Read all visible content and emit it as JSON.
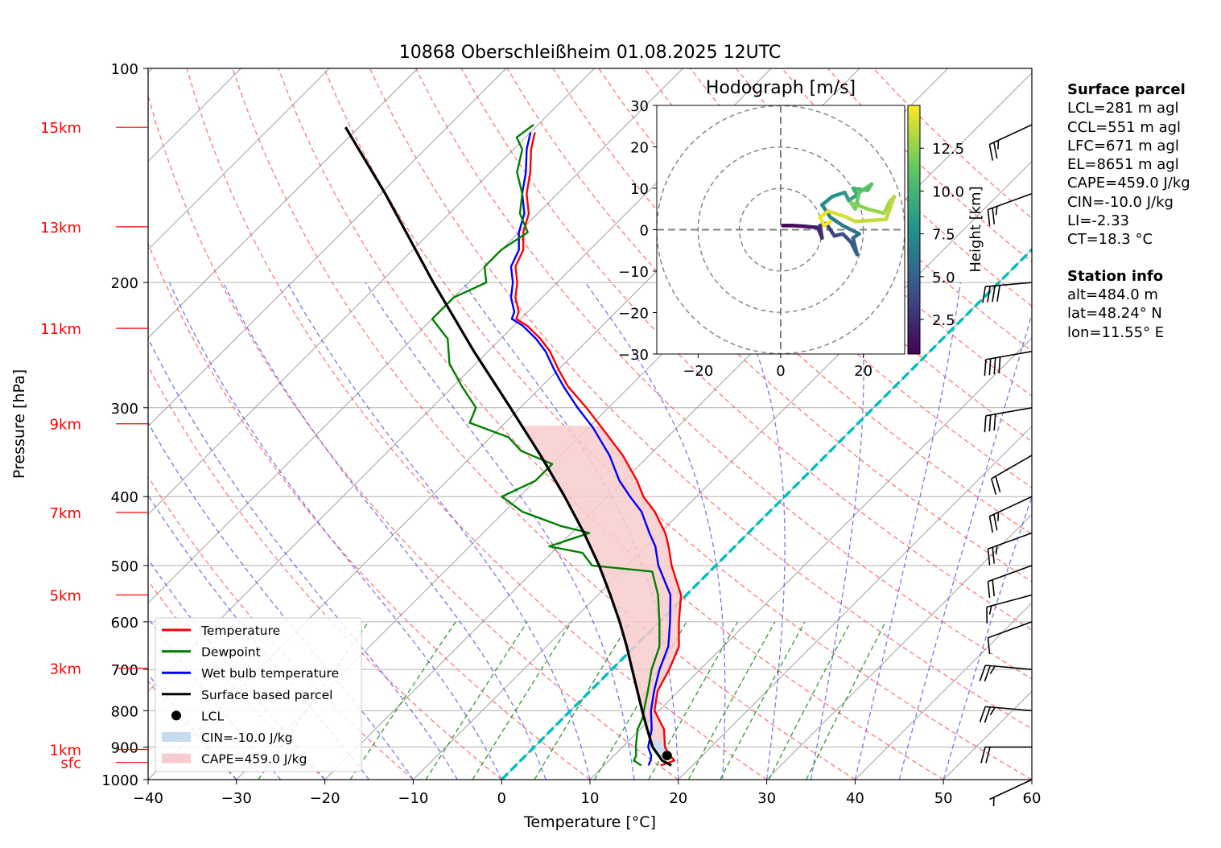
{
  "chart_data": {
    "type": "skew-t log-p diagram",
    "title": "10868 Oberschleißheim 01.08.2025 12UTC",
    "xlabel": "Temperature [°C]",
    "ylabel": "Pressure [hPa]",
    "xlim": [
      -40,
      60
    ],
    "ylim_hPa": [
      1000,
      100
    ],
    "x_ticks": [
      "−40",
      "−30",
      "−20",
      "−10",
      "0",
      "10",
      "20",
      "30",
      "40",
      "50",
      "60"
    ],
    "y_ticks": [
      "100",
      "200",
      "300",
      "400",
      "500",
      "600",
      "700",
      "800",
      "900",
      "1000"
    ],
    "height_labels": [
      {
        "label": "sfc",
        "p": 946
      },
      {
        "label": "1km",
        "p": 907
      },
      {
        "label": "3km",
        "p": 697
      },
      {
        "label": "5km",
        "p": 550
      },
      {
        "label": "7km",
        "p": 421
      },
      {
        "label": "9km",
        "p": 316
      },
      {
        "label": "11km",
        "p": 232
      },
      {
        "label": "13km",
        "p": 167
      },
      {
        "label": "15km",
        "p": 121
      }
    ],
    "series": [
      {
        "name": "Temperature",
        "color": "#ff0000",
        "points": [
          [
            955,
            16.4
          ],
          [
            940,
            17.4
          ],
          [
            925,
            16.3
          ],
          [
            900,
            14.8
          ],
          [
            850,
            12.7
          ],
          [
            800,
            9.5
          ],
          [
            750,
            7.6
          ],
          [
            700,
            6.5
          ],
          [
            650,
            5.0
          ],
          [
            600,
            2.2
          ],
          [
            550,
            -0.6
          ],
          [
            500,
            -5.0
          ],
          [
            470,
            -7.5
          ],
          [
            450,
            -9.4
          ],
          [
            420,
            -13.0
          ],
          [
            400,
            -16.0
          ],
          [
            380,
            -18.5
          ],
          [
            350,
            -23.0
          ],
          [
            320,
            -28.5
          ],
          [
            300,
            -32.5
          ],
          [
            280,
            -37.0
          ],
          [
            265,
            -40.0
          ],
          [
            250,
            -43.0
          ],
          [
            240,
            -45.5
          ],
          [
            230,
            -48.5
          ],
          [
            225,
            -50.5
          ],
          [
            220,
            -51.0
          ],
          [
            210,
            -53.0
          ],
          [
            200,
            -54.5
          ],
          [
            190,
            -56.5
          ],
          [
            180,
            -57.5
          ],
          [
            170,
            -59.5
          ],
          [
            160,
            -61.0
          ],
          [
            150,
            -63.5
          ],
          [
            140,
            -65.5
          ],
          [
            130,
            -68.0
          ],
          [
            123,
            -69.5
          ]
        ]
      },
      {
        "name": "Dewpoint",
        "color": "#008000",
        "points": [
          [
            955,
            14.2
          ],
          [
            940,
            12.8
          ],
          [
            925,
            12.5
          ],
          [
            900,
            11.5
          ],
          [
            850,
            9.7
          ],
          [
            820,
            9.0
          ],
          [
            800,
            8.3
          ],
          [
            750,
            6.5
          ],
          [
            700,
            4.5
          ],
          [
            650,
            2.8
          ],
          [
            600,
            0.0
          ],
          [
            550,
            -3.2
          ],
          [
            510,
            -6.5
          ],
          [
            500,
            -14.0
          ],
          [
            480,
            -16.5
          ],
          [
            470,
            -21.0
          ],
          [
            450,
            -18.0
          ],
          [
            440,
            -22.0
          ],
          [
            420,
            -28.0
          ],
          [
            400,
            -32.0
          ],
          [
            380,
            -30.0
          ],
          [
            360,
            -30.0
          ],
          [
            345,
            -35.0
          ],
          [
            330,
            -38.0
          ],
          [
            315,
            -44.0
          ],
          [
            300,
            -45.0
          ],
          [
            280,
            -49.0
          ],
          [
            260,
            -53.0
          ],
          [
            240,
            -56.0
          ],
          [
            225,
            -60.0
          ],
          [
            210,
            -60.0
          ],
          [
            200,
            -58.0
          ],
          [
            190,
            -60.0
          ],
          [
            180,
            -60.0
          ],
          [
            170,
            -59.0
          ],
          [
            160,
            -62.0
          ],
          [
            150,
            -64.0
          ],
          [
            140,
            -67.0
          ],
          [
            130,
            -69.0
          ],
          [
            125,
            -71.0
          ],
          [
            120,
            -70.5
          ]
        ]
      },
      {
        "name": "Wet bulb temperature",
        "color": "#0000ff",
        "points": [
          [
            955,
            15.0
          ],
          [
            940,
            14.7
          ],
          [
            925,
            14.2
          ],
          [
            900,
            12.9
          ],
          [
            850,
            11.3
          ],
          [
            800,
            9.1
          ],
          [
            750,
            7.2
          ],
          [
            700,
            5.4
          ],
          [
            650,
            3.8
          ],
          [
            600,
            1.2
          ],
          [
            550,
            -1.8
          ],
          [
            500,
            -6.5
          ],
          [
            470,
            -9.0
          ],
          [
            450,
            -11.2
          ],
          [
            420,
            -14.5
          ],
          [
            400,
            -17.5
          ],
          [
            380,
            -20.5
          ],
          [
            350,
            -24.5
          ],
          [
            320,
            -29.5
          ],
          [
            300,
            -33.5
          ],
          [
            280,
            -37.5
          ],
          [
            265,
            -40.5
          ],
          [
            250,
            -43.5
          ],
          [
            240,
            -46.0
          ],
          [
            230,
            -49.0
          ],
          [
            225,
            -51.0
          ],
          [
            220,
            -51.5
          ],
          [
            210,
            -53.5
          ],
          [
            200,
            -55.0
          ],
          [
            190,
            -57.0
          ],
          [
            180,
            -58.0
          ],
          [
            170,
            -60.0
          ],
          [
            160,
            -61.5
          ],
          [
            150,
            -64.0
          ],
          [
            140,
            -66.0
          ],
          [
            130,
            -68.5
          ],
          [
            123,
            -70.0
          ]
        ]
      },
      {
        "name": "Surface based parcel",
        "color": "#000000",
        "points": [
          [
            955,
            17.6
          ],
          [
            940,
            16.0
          ],
          [
            900,
            13.4
          ],
          [
            850,
            10.8
          ],
          [
            800,
            8.1
          ],
          [
            750,
            5.3
          ],
          [
            700,
            2.3
          ],
          [
            650,
            -0.9
          ],
          [
            600,
            -4.5
          ],
          [
            550,
            -8.6
          ],
          [
            500,
            -13.2
          ],
          [
            450,
            -18.6
          ],
          [
            400,
            -24.9
          ],
          [
            350,
            -32.3
          ],
          [
            300,
            -41.1
          ],
          [
            250,
            -51.6
          ],
          [
            200,
            -64.0
          ],
          [
            150,
            -79.5
          ],
          [
            121,
            -91.5
          ]
        ]
      }
    ],
    "lcl": {
      "name": "LCL",
      "p": 925,
      "t": 16.0
    },
    "cin_label": "CIN=-10.0 J/kg",
    "cape_label": "CAPE=459.0 J/kg",
    "zero_isotherm_color": "#00bfbf",
    "legend": {
      "position": "lower-left",
      "items": [
        {
          "label": "Temperature",
          "kind": "line",
          "color": "#ff0000"
        },
        {
          "label": "Dewpoint",
          "kind": "line",
          "color": "#008000"
        },
        {
          "label": "Wet bulb temperature",
          "kind": "line",
          "color": "#0000ff"
        },
        {
          "label": "Surface based parcel",
          "kind": "line",
          "color": "#000000"
        },
        {
          "label": "LCL",
          "kind": "dot",
          "color": "#000000"
        },
        {
          "label": "CIN=-10.0 J/kg",
          "kind": "patch",
          "color": "#c6dbef"
        },
        {
          "label": "CAPE=459.0 J/kg",
          "kind": "patch",
          "color": "#f8cccc"
        }
      ]
    },
    "wind_barbs": [
      {
        "p": 1000,
        "dir_deg": 245,
        "speed_kt": 7
      },
      {
        "p": 900,
        "dir_deg": 270,
        "speed_kt": 22
      },
      {
        "p": 800,
        "dir_deg": 275,
        "speed_kt": 25
      },
      {
        "p": 700,
        "dir_deg": 275,
        "speed_kt": 25
      },
      {
        "p": 600,
        "dir_deg": 250,
        "speed_kt": 12
      },
      {
        "p": 550,
        "dir_deg": 255,
        "speed_kt": 15
      },
      {
        "p": 500,
        "dir_deg": 250,
        "speed_kt": 20
      },
      {
        "p": 450,
        "dir_deg": 250,
        "speed_kt": 25
      },
      {
        "p": 400,
        "dir_deg": 245,
        "speed_kt": 25
      },
      {
        "p": 350,
        "dir_deg": 240,
        "speed_kt": 20
      },
      {
        "p": 300,
        "dir_deg": 260,
        "speed_kt": 30
      },
      {
        "p": 250,
        "dir_deg": 260,
        "speed_kt": 40
      },
      {
        "p": 200,
        "dir_deg": 265,
        "speed_kt": 40
      },
      {
        "p": 150,
        "dir_deg": 250,
        "speed_kt": 25
      },
      {
        "p": 120,
        "dir_deg": 245,
        "speed_kt": 25
      }
    ],
    "hodograph": {
      "title": "Hodograph [m/s]",
      "xlim": [
        -30,
        30
      ],
      "ylim": [
        -30,
        30
      ],
      "x_ticks": [
        "−20",
        "0",
        "20"
      ],
      "y_ticks": [
        "30",
        "20",
        "10",
        "0",
        "−10",
        "−20",
        "−30"
      ],
      "range_rings": [
        10,
        20,
        30
      ],
      "colorbar_label": "Height [km]",
      "colorbar_ticks": [
        "2.5",
        "5.0",
        "7.5",
        "10.0",
        "12.5"
      ],
      "height_range_km": [
        0.48,
        15
      ],
      "colormap": [
        "#440154",
        "#3b528b",
        "#21918c",
        "#5ec962",
        "#fde725"
      ],
      "trace": [
        {
          "u": 0.5,
          "v": 1.0,
          "h": 0.5
        },
        {
          "u": 3.0,
          "v": 1.0,
          "h": 0.9
        },
        {
          "u": 6.0,
          "v": 0.8,
          "h": 1.4
        },
        {
          "u": 9.0,
          "v": 0.5,
          "h": 1.9
        },
        {
          "u": 10.0,
          "v": -2.0,
          "h": 2.4
        },
        {
          "u": 9.5,
          "v": 1.0,
          "h": 2.8
        },
        {
          "u": 11.0,
          "v": 1.5,
          "h": 3.2
        },
        {
          "u": 13.0,
          "v": -1.5,
          "h": 3.6
        },
        {
          "u": 15.0,
          "v": -1.0,
          "h": 4.0
        },
        {
          "u": 17.0,
          "v": -3.0,
          "h": 4.5
        },
        {
          "u": 18.5,
          "v": -6.0,
          "h": 5.0
        },
        {
          "u": 17.5,
          "v": -2.0,
          "h": 5.5
        },
        {
          "u": 19.0,
          "v": -1.0,
          "h": 6.0
        },
        {
          "u": 15.0,
          "v": 1.0,
          "h": 6.5
        },
        {
          "u": 12.0,
          "v": 3.0,
          "h": 7.0
        },
        {
          "u": 10.0,
          "v": 6.0,
          "h": 7.5
        },
        {
          "u": 12.5,
          "v": 8.0,
          "h": 8.0
        },
        {
          "u": 15.5,
          "v": 9.0,
          "h": 8.5
        },
        {
          "u": 16.5,
          "v": 7.0,
          "h": 9.0
        },
        {
          "u": 18.5,
          "v": 8.5,
          "h": 9.5
        },
        {
          "u": 17.5,
          "v": 10.0,
          "h": 10.0
        },
        {
          "u": 21.0,
          "v": 9.5,
          "h": 10.5
        },
        {
          "u": 22.0,
          "v": 11.0,
          "h": 11.0
        },
        {
          "u": 19.0,
          "v": 9.0,
          "h": 11.5
        },
        {
          "u": 18.0,
          "v": 5.0,
          "h": 12.0
        },
        {
          "u": 17.0,
          "v": 6.5,
          "h": 12.3
        },
        {
          "u": 21.0,
          "v": 5.0,
          "h": 12.6
        },
        {
          "u": 25.0,
          "v": 4.0,
          "h": 12.9
        },
        {
          "u": 26.5,
          "v": 7.0,
          "h": 13.2
        },
        {
          "u": 27.5,
          "v": 8.0,
          "h": 13.5
        },
        {
          "u": 25.5,
          "v": 2.5,
          "h": 13.7
        },
        {
          "u": 18.0,
          "v": 2.0,
          "h": 13.9
        },
        {
          "u": 16.0,
          "v": 3.0,
          "h": 14.1
        },
        {
          "u": 13.0,
          "v": 4.0,
          "h": 14.3
        },
        {
          "u": 11.5,
          "v": 4.5,
          "h": 14.5
        },
        {
          "u": 9.5,
          "v": 3.0,
          "h": 14.7
        },
        {
          "u": 10.5,
          "v": 1.0,
          "h": 14.9
        },
        {
          "u": 12.0,
          "v": 2.0,
          "h": 15.0
        }
      ]
    }
  },
  "side_panel": {
    "surface_header": "Surface parcel",
    "surface_lines": [
      "LCL=281 m agl",
      "CCL=551 m agl",
      "LFC=671 m agl",
      "EL=8651 m agl",
      "CAPE=459.0 J/kg",
      "CIN=-10.0 J/kg",
      "LI=-2.33",
      "CT=18.3 °C"
    ],
    "station_header": "Station info",
    "station_lines": [
      "alt=484.0 m",
      "lat=48.24° N",
      "lon=11.55° E"
    ]
  }
}
